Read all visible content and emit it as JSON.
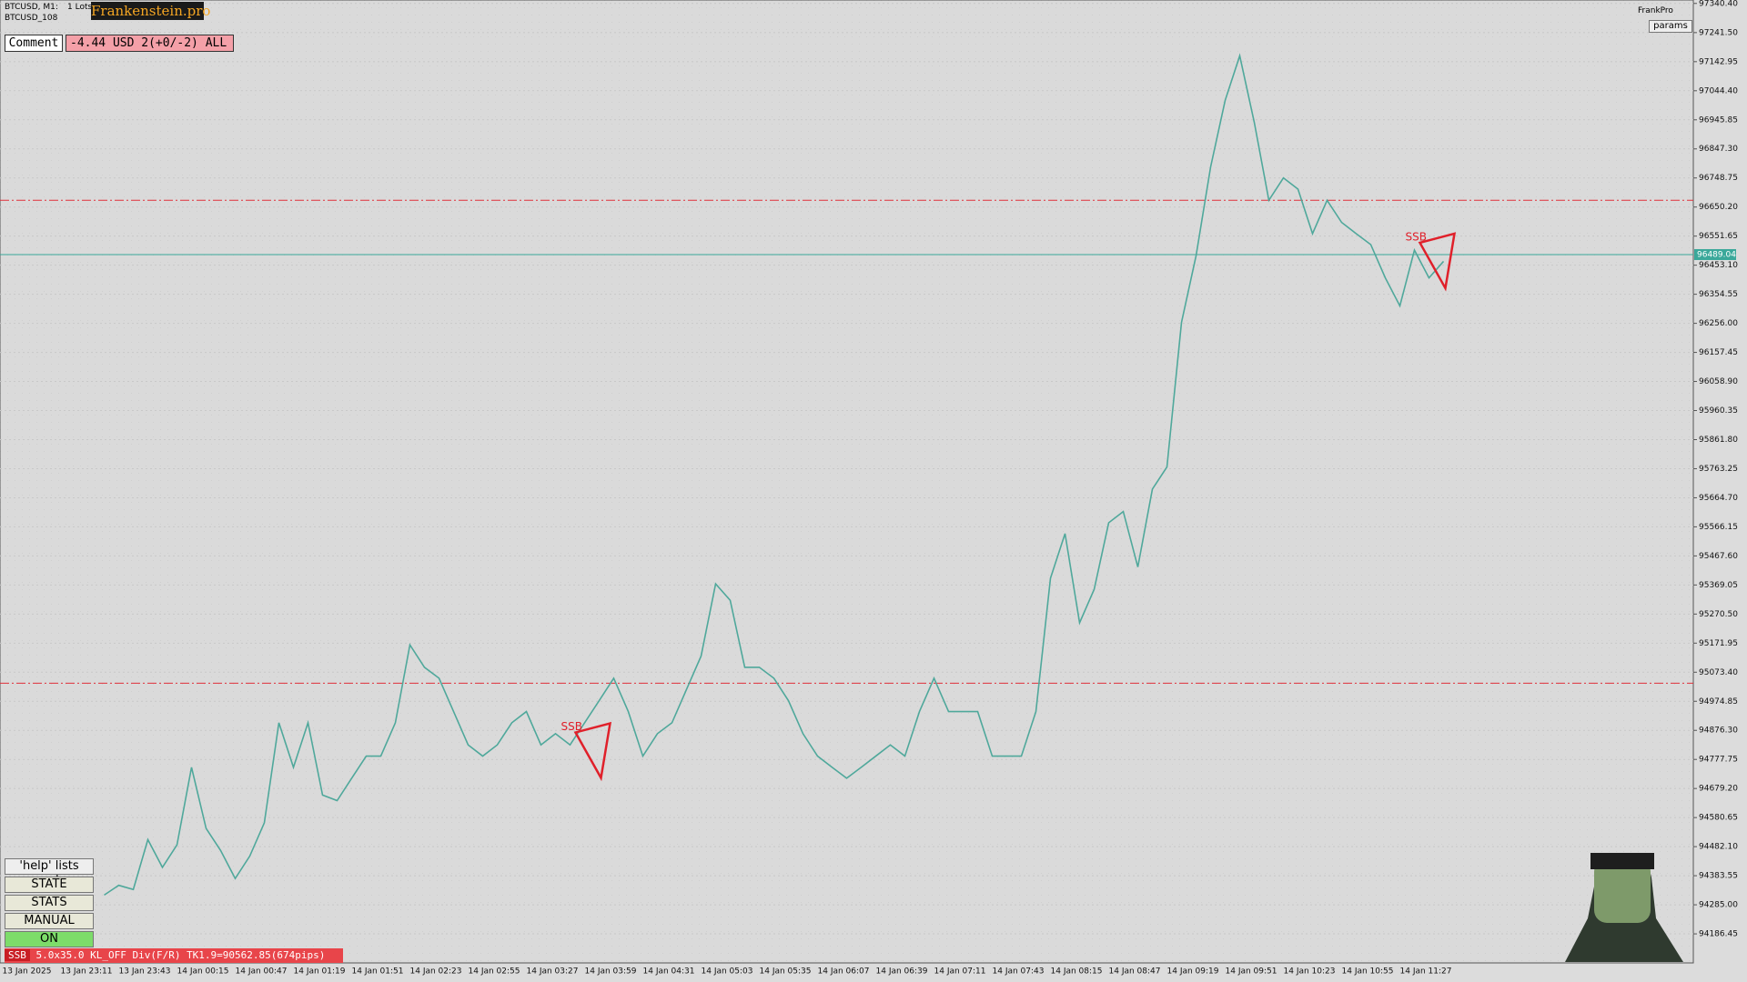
{
  "header": {
    "symbol": "BTCUSD, M1:",
    "lots": "1 Lots",
    "brand": "Frankenstein.pro",
    "symbol2": "BTCUSD_108",
    "account": "FrankPro",
    "params": "params"
  },
  "comment": {
    "label": "Comment",
    "value": "-4.44 USD 2(+0/-2) ALL"
  },
  "buttons": [
    "'help' lists cmds",
    "STATE",
    "STATS",
    "MANUAL",
    "ON"
  ],
  "status": {
    "tag": "SSB",
    "text": "5.0x35.0 KL_OFF Div(F/R) TK1.9=90562.85(674pips)"
  },
  "chart_data": {
    "type": "line",
    "annotations": [
      "SSB",
      "SSB"
    ],
    "color": "#4fa89b",
    "current_price": 96489.04,
    "levels": [
      96673,
      95036
    ],
    "ylim": [
      94088,
      97352
    ],
    "yticks": [
      {
        "value": 97340.4,
        "label": "97340.40"
      },
      {
        "value": 97241.5,
        "label": "97241.50"
      },
      {
        "value": 97142.95,
        "label": "97142.95"
      },
      {
        "value": 97044.4,
        "label": "97044.40"
      },
      {
        "value": 96945.85,
        "label": "96945.85"
      },
      {
        "value": 96847.3,
        "label": "96847.30"
      },
      {
        "value": 96748.75,
        "label": "96748.75"
      },
      {
        "value": 96650.2,
        "label": "96650.20"
      },
      {
        "value": 96551.65,
        "label": "96551.65"
      },
      {
        "value": 96453.1,
        "label": "96453.10"
      },
      {
        "value": 96354.55,
        "label": "96354.55"
      },
      {
        "value": 96256,
        "label": "96256.00"
      },
      {
        "value": 96157.45,
        "label": "96157.45"
      },
      {
        "value": 96058.9,
        "label": "96058.90"
      },
      {
        "value": 95960.35,
        "label": "95960.35"
      },
      {
        "value": 95861.8,
        "label": "95861.80"
      },
      {
        "value": 95763.25,
        "label": "95763.25"
      },
      {
        "value": 95664.7,
        "label": "95664.70"
      },
      {
        "value": 95566.15,
        "label": "95566.15"
      },
      {
        "value": 95467.6,
        "label": "95467.60"
      },
      {
        "value": 95369.05,
        "label": "95369.05"
      },
      {
        "value": 95270.5,
        "label": "95270.50"
      },
      {
        "value": 95171.95,
        "label": "95171.95"
      },
      {
        "value": 95073.4,
        "label": "95073.40"
      },
      {
        "value": 94974.85,
        "label": "94974.85"
      },
      {
        "value": 94876.3,
        "label": "94876.30"
      },
      {
        "value": 94777.75,
        "label": "94777.75"
      },
      {
        "value": 94679.2,
        "label": "94679.20"
      },
      {
        "value": 94580.65,
        "label": "94580.65"
      },
      {
        "value": 94482.1,
        "label": "94482.10"
      },
      {
        "value": 94383.55,
        "label": "94383.55"
      },
      {
        "value": 94285,
        "label": "94285.00"
      },
      {
        "value": 94186.45,
        "label": "94186.45"
      }
    ],
    "categories": [
      "13 Jan 2025",
      null,
      null,
      null,
      "13 Jan 23:11",
      null,
      null,
      null,
      "13 Jan 23:43",
      null,
      null,
      null,
      "14 Jan 00:15",
      null,
      null,
      null,
      "14 Jan 00:47",
      null,
      null,
      null,
      "14 Jan 01:19",
      null,
      null,
      null,
      "14 Jan 01:51",
      null,
      null,
      null,
      "14 Jan 02:23",
      null,
      null,
      null,
      "14 Jan 02:55",
      null,
      null,
      null,
      "14 Jan 03:27",
      null,
      null,
      null,
      "14 Jan 03:59",
      null,
      null,
      null,
      "14 Jan 04:31",
      null,
      null,
      null,
      "14 Jan 05:03",
      null,
      null,
      null,
      "14 Jan 05:35",
      null,
      null,
      null,
      "14 Jan 06:07",
      null,
      null,
      null,
      "14 Jan 06:39",
      null,
      null,
      null,
      "14 Jan 07:11",
      null,
      null,
      null,
      "14 Jan 07:43",
      null,
      null,
      null,
      "14 Jan 08:15",
      null,
      null,
      null,
      "14 Jan 08:47",
      null,
      null,
      null,
      "14 Jan 09:19",
      null,
      null,
      null,
      "14 Jan 09:51",
      null,
      null,
      null,
      "14 Jan 10:23",
      null,
      null,
      null,
      "14 Jan 10:55",
      null,
      null,
      null,
      "14 Jan 11:27",
      null,
      null,
      null
    ],
    "values": [
      null,
      null,
      null,
      null,
      null,
      null,
      null,
      94318,
      94351,
      94337,
      94506,
      94412,
      94488,
      94751,
      94544,
      94469,
      94374,
      94450,
      94563,
      94902,
      94751,
      94902,
      94657,
      94638,
      94714,
      94789,
      94789,
      94902,
      95166,
      95090,
      95053,
      94940,
      94827,
      94789,
      94827,
      94902,
      94940,
      94827,
      94865,
      94827,
      94902,
      94977,
      95053,
      94940,
      94789,
      94865,
      94902,
      95015,
      95128,
      95373,
      95317,
      95090,
      95090,
      95053,
      94977,
      94865,
      94789,
      94751,
      94714,
      94751,
      94789,
      94827,
      94789,
      94940,
      95053,
      94940,
      94940,
      94940,
      94789,
      94789,
      94789,
      94940,
      95392,
      95543,
      95241,
      95354,
      95580,
      95618,
      95430,
      95694,
      95769,
      96259,
      96485,
      96786,
      97012,
      97163,
      96937,
      96673,
      96749,
      96711,
      96560,
      96673,
      96598,
      96560,
      96523,
      96410,
      96315,
      96504,
      96410,
      96466
    ]
  }
}
